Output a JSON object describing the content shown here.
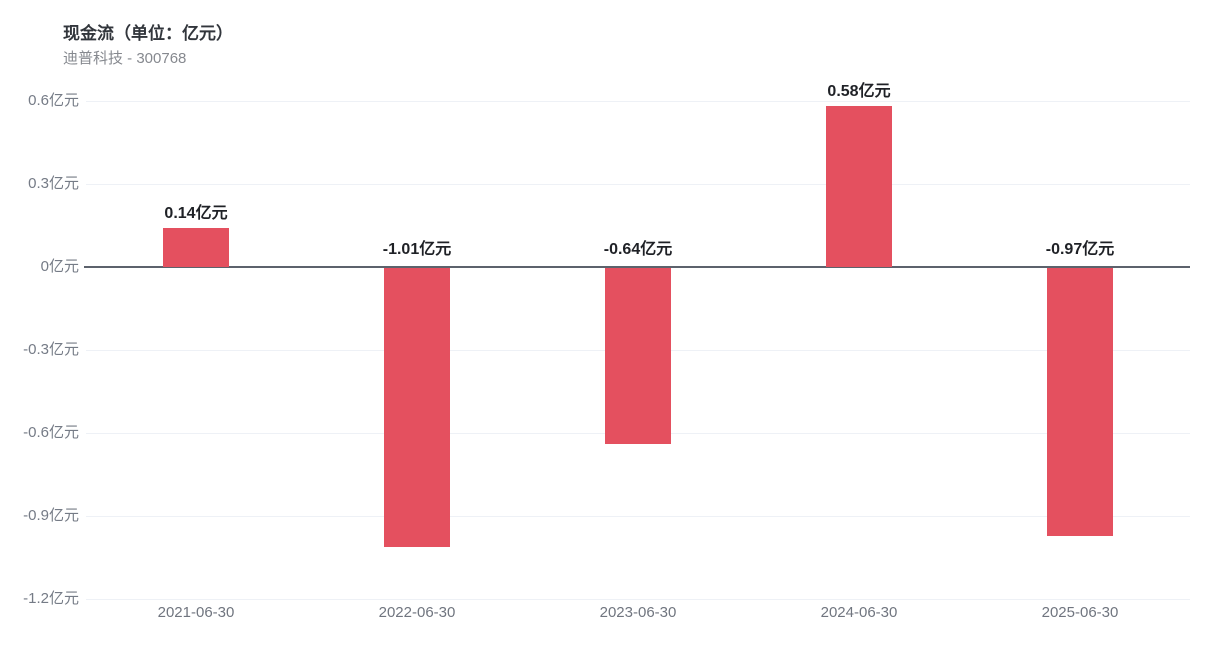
{
  "header": {
    "title": "现金流（单位：亿元）",
    "subtitle": "迪普科技 - 300768"
  },
  "chart_data": {
    "type": "bar",
    "title": "现金流（单位：亿元）",
    "subtitle": "迪普科技 - 300768",
    "categories": [
      "2021-06-30",
      "2022-06-30",
      "2023-06-30",
      "2024-06-30",
      "2025-06-30"
    ],
    "values": [
      0.14,
      -1.01,
      -0.64,
      0.58,
      -0.97
    ],
    "value_labels": [
      "0.14亿元",
      "-1.01亿元",
      "-0.64亿元",
      "0.58亿元",
      "-0.97亿元"
    ],
    "unit": "亿元",
    "yticks": [
      0.6,
      0.3,
      0,
      -0.3,
      -0.6,
      -0.9,
      -1.2
    ],
    "ytick_labels": [
      "0.6亿元",
      "0.3亿元",
      "0亿元",
      "-0.3亿元",
      "-0.6亿元",
      "-0.9亿元",
      "-1.2亿元"
    ],
    "ylim": [
      -1.2,
      0.6
    ],
    "grid": true,
    "legend_position": "none",
    "colors": {
      "bar": "#e4505f",
      "gridline": "#eef1f6",
      "zero_line": "#5c626c",
      "axis_label": "#70757f",
      "value_label": "#1f2126"
    }
  }
}
